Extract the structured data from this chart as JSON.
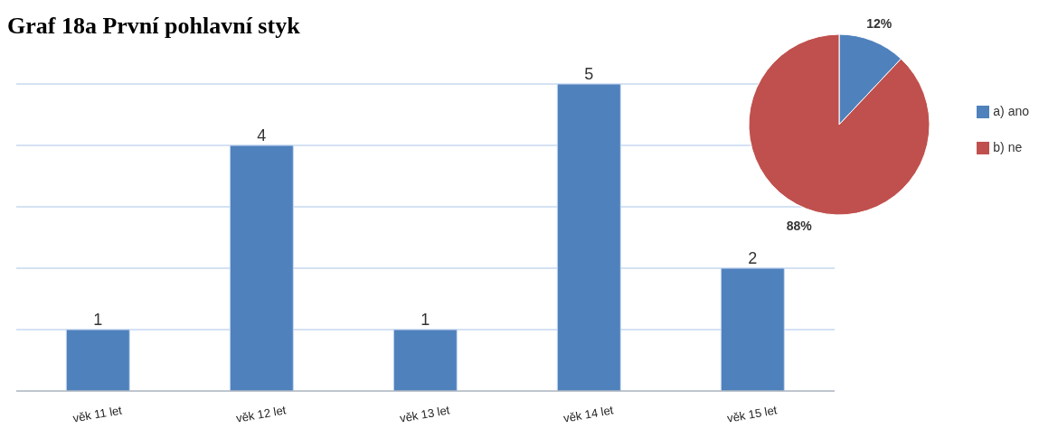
{
  "chart_data": [
    {
      "type": "bar",
      "title": "Graf 18a První pohlavní styk",
      "categories": [
        "věk 11 let",
        "věk 12 let",
        "věk 13 let",
        "věk 14 let",
        "věk 15 let"
      ],
      "values": [
        1,
        4,
        1,
        5,
        2
      ],
      "color": "#4f81bd",
      "data_labels": true,
      "ylim": [
        0,
        5
      ],
      "yticks": [
        {
          "value": 0,
          "label": null
        },
        {
          "value": 1,
          "label": null
        },
        {
          "value": 2,
          "label": null
        },
        {
          "value": 3,
          "label": null
        },
        {
          "value": 4,
          "label": null
        },
        {
          "value": 5,
          "label": null
        }
      ],
      "tick_labels": "x",
      "grid": "y"
    },
    {
      "type": "pie",
      "categories": [
        "a) ano",
        "b) ne"
      ],
      "values": [
        12,
        88
      ],
      "colors": [
        "#4f81bd",
        "#c0504d"
      ],
      "value_labels": [
        "12%",
        "88%"
      ],
      "legend": "right"
    }
  ]
}
